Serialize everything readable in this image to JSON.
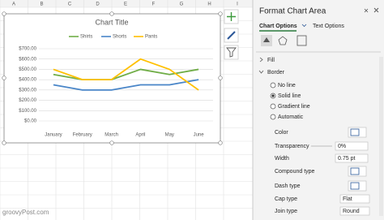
{
  "sheet": {
    "columns": [
      "A",
      "B",
      "C",
      "D",
      "E",
      "F",
      "G",
      "H",
      "I"
    ]
  },
  "chart_data": {
    "type": "line",
    "title": "Chart Title",
    "categories": [
      "January",
      "February",
      "March",
      "April",
      "May",
      "June"
    ],
    "series": [
      {
        "name": "Shirts",
        "color": "#70ad47",
        "values": [
          450,
          400,
          400,
          500,
          450,
          500
        ]
      },
      {
        "name": "Shorts",
        "color": "#4a86c8",
        "values": [
          350,
          300,
          300,
          350,
          350,
          400
        ]
      },
      {
        "name": "Pants",
        "color": "#ffc000",
        "values": [
          500,
          400,
          400,
          600,
          500,
          300
        ]
      }
    ],
    "ylim": [
      0,
      700
    ],
    "yticks": [
      {
        "value": 0,
        "label": "$0.00"
      },
      {
        "value": 100,
        "label": "$100.00"
      },
      {
        "value": 200,
        "label": "$200.00"
      },
      {
        "value": 300,
        "label": "$300.00"
      },
      {
        "value": 400,
        "label": "$400.00"
      },
      {
        "value": 500,
        "label": "$500.00"
      },
      {
        "value": 600,
        "label": "$600.00"
      },
      {
        "value": 700,
        "label": "$700.00"
      }
    ],
    "grid": true,
    "legend": "top"
  },
  "pane": {
    "title": "Format Chart Area",
    "tabs": [
      "Chart Options",
      "Text Options"
    ],
    "sections": [
      "Fill",
      "Border"
    ],
    "options": [
      "No line",
      "Solid line",
      "Gradient line",
      "Automatic"
    ],
    "selected": 1,
    "props": [
      {
        "label": "Color"
      },
      {
        "label": "Transparency",
        "value": "0%"
      },
      {
        "label": "Width",
        "value": "0.75 pt"
      },
      {
        "label": "Compound type"
      },
      {
        "label": "Dash type"
      },
      {
        "label": "Cap type",
        "value": "Flat"
      },
      {
        "label": "Join type",
        "value": "Round"
      }
    ]
  },
  "watermark": "groovyPost.com"
}
